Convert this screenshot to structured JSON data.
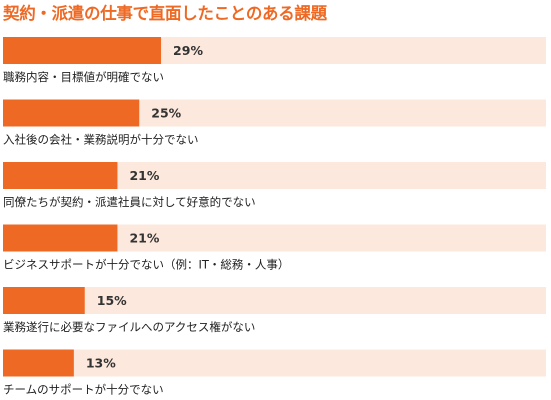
{
  "chart_data": {
    "type": "bar",
    "orientation": "horizontal",
    "title": "契約・派遣の仕事で直面したことのある課題",
    "categories": [
      "職務内容・目標値が明確でない",
      "入社後の会社・業務説明が十分でない",
      "同僚たちが契約・派遣社員に対して好意的でない",
      "ビジネスサポートが十分でない（例：IT・総務・人事）",
      "業務遂行に必要なファイルへのアクセス権がない",
      "チームのサポートが十分でない"
    ],
    "values": [
      29,
      25,
      21,
      21,
      15,
      13
    ],
    "value_labels": [
      "29%",
      "25%",
      "21%",
      "21%",
      "15%",
      "13%"
    ],
    "unit": "%",
    "xlim": [
      0,
      100
    ],
    "grid": false,
    "legend": "none"
  },
  "colors": {
    "bar": "#ee6a24",
    "track": "#fce8dc",
    "title": "#ee6a24",
    "value_text": "#333333",
    "label_text": "#222222"
  }
}
